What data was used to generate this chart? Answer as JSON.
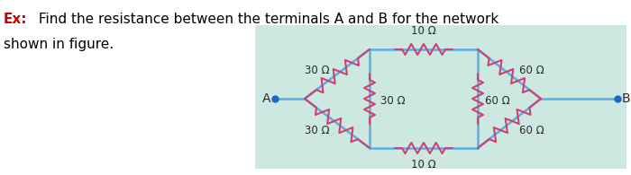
{
  "bg_color": "#cce8e0",
  "wire_color": "#5aaee0",
  "resistor_color": "#d04070",
  "text_color": "#2a2a2a",
  "title_text": "Ex:",
  "title_color": "#cc0000",
  "label_A": "A",
  "label_B": "B",
  "resistors": {
    "top_left": "30 Ω",
    "top_mid": "10 Ω",
    "top_right": "60 Ω",
    "mid_center": "30 Ω",
    "mid_right": "60 Ω",
    "bot_left": "30 Ω",
    "bot_mid": "10 Ω",
    "bot_right": "60 Ω"
  },
  "fig_width": 7.0,
  "fig_height": 1.95,
  "dpi": 100,
  "text_line1": " Find the resistance between the terminals A and B for the network",
  "text_line2": "shown in figure."
}
